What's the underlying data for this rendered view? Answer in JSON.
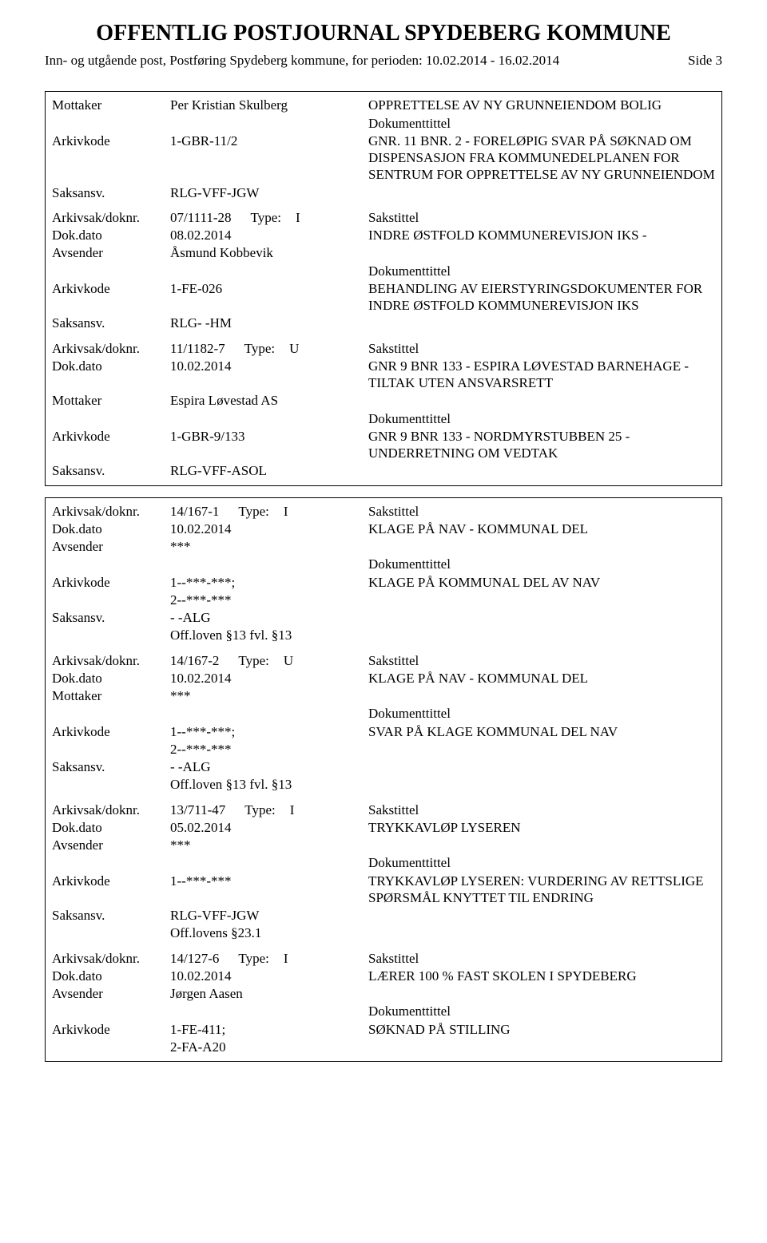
{
  "header": {
    "title": "OFFENTLIG POSTJOURNAL SPYDEBERG KOMMUNE",
    "subtitle": "Inn- og utgående post, Postføring Spydeberg kommune, for perioden: 10.02.2014 - 16.02.2014",
    "pageSide": "Side 3"
  },
  "labels": {
    "mottaker": "Mottaker",
    "avsender": "Avsender",
    "arkivkode": "Arkivkode",
    "saksansv": "Saksansv.",
    "arkivsak": "Arkivsak/doknr.",
    "dokdato": "Dok.dato",
    "dokumenttittel": "Dokumenttittel",
    "sakstittel": "Sakstittel",
    "type": "Type:"
  },
  "groups": [
    {
      "entries": [
        {
          "party_label": "Mottaker",
          "party_value": "Per Kristian Skulberg",
          "sakstittel": "OPPRETTELSE AV NY GRUNNEIENDOM BOLIG",
          "arkivkode": "1-GBR-11/2",
          "saksansv": "RLG-VFF-JGW",
          "dokumenttittel": "GNR. 11 BNR. 2 - FORELØPIG SVAR PÅ SØKNAD OM DISPENSASJON FRA KOMMUNEDELPLANEN FOR SENTRUM FOR OPPRETTELSE AV NY GRUNNEIENDOM",
          "off": ""
        },
        {
          "arkivsak": "07/1111-28",
          "type": "I",
          "sakstittel_label": "Sakstittel",
          "dokdato": "08.02.2014",
          "party_label": "Avsender",
          "party_value": "Åsmund Kobbevik",
          "sakstittel": "INDRE ØSTFOLD KOMMUNEREVISJON IKS -",
          "arkivkode": "1-FE-026",
          "saksansv": "RLG- -HM",
          "dokumenttittel": "BEHANDLING AV EIERSTYRINGSDOKUMENTER FOR INDRE ØSTFOLD KOMMUNEREVISJON IKS",
          "off": ""
        },
        {
          "arkivsak": "11/1182-7",
          "type": "U",
          "sakstittel_label": "Sakstittel",
          "dokdato": "10.02.2014",
          "party_label": "Mottaker",
          "party_value": "Espira Løvestad AS",
          "sakstittel": "GNR 9 BNR 133 - ESPIRA LØVESTAD BARNEHAGE - TILTAK UTEN ANSVARSRETT",
          "arkivkode": "1-GBR-9/133",
          "saksansv": "RLG-VFF-ASOL",
          "dokumenttittel": "GNR 9 BNR 133 - NORDMYRSTUBBEN 25 - UNDERRETNING OM VEDTAK",
          "off": ""
        }
      ]
    },
    {
      "entries": [
        {
          "arkivsak": "14/167-1",
          "type": "I",
          "sakstittel_label": "Sakstittel",
          "dokdato": "10.02.2014",
          "party_label": "Avsender",
          "party_value": "***",
          "sakstittel": "KLAGE PÅ NAV - KOMMUNAL DEL",
          "arkivkode": "1--***-***;",
          "arkivkode2": "2--***-***",
          "saksansv": "- -ALG",
          "dokumenttittel": "KLAGE PÅ KOMMUNAL DEL AV NAV",
          "off": "Off.loven §13  fvl. §13"
        },
        {
          "arkivsak": "14/167-2",
          "type": "U",
          "sakstittel_label": "Sakstittel",
          "dokdato": "10.02.2014",
          "party_label": "Mottaker",
          "party_value": "***",
          "sakstittel": "KLAGE PÅ NAV - KOMMUNAL DEL",
          "arkivkode": "1--***-***;",
          "arkivkode2": "2--***-***",
          "saksansv": "- -ALG",
          "dokumenttittel": "SVAR PÅ KLAGE KOMMUNAL DEL NAV",
          "off": "Off.loven §13  fvl. §13"
        },
        {
          "arkivsak": "13/711-47",
          "type": "I",
          "sakstittel_label": "Sakstittel",
          "dokdato": "05.02.2014",
          "party_label": "Avsender",
          "party_value": "***",
          "sakstittel": "TRYKKAVLØP LYSEREN",
          "arkivkode": "1--***-***",
          "saksansv": "RLG-VFF-JGW",
          "dokumenttittel": "TRYKKAVLØP LYSEREN: VURDERING AV RETTSLIGE SPØRSMÅL KNYTTET TIL ENDRING",
          "off": "Off.lovens §23.1"
        },
        {
          "arkivsak": "14/127-6",
          "type": "I",
          "sakstittel_label": "Sakstittel",
          "dokdato": "10.02.2014",
          "party_label": "Avsender",
          "party_value": "Jørgen Aasen",
          "sakstittel": "LÆRER 100 % FAST SKOLEN I SPYDEBERG",
          "arkivkode": "1-FE-411;",
          "arkivkode2": "2-FA-A20",
          "saksansv": "",
          "dokumenttittel": "SØKNAD PÅ STILLING",
          "off": ""
        }
      ]
    }
  ]
}
